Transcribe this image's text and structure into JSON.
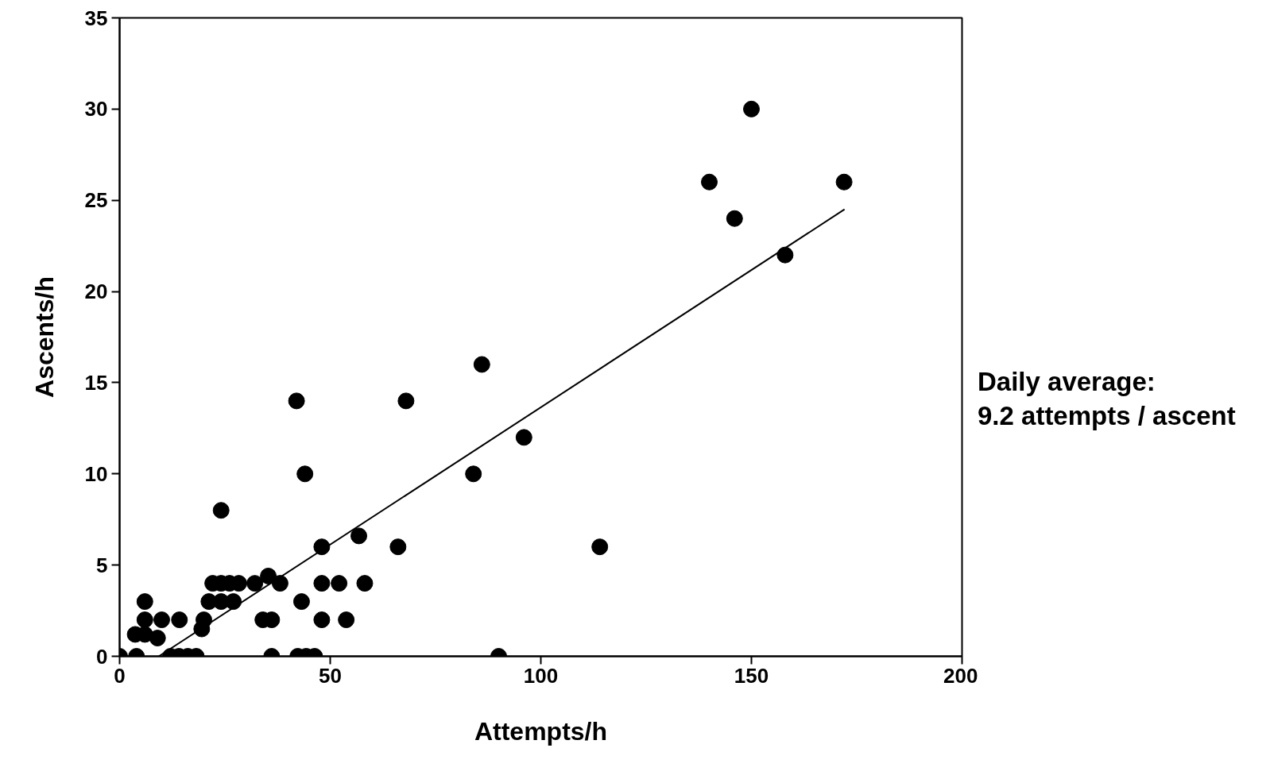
{
  "chart_data": {
    "type": "scatter",
    "xlabel": "Attempts/h",
    "ylabel": "Ascents/h",
    "xlim": [
      0,
      200
    ],
    "ylim": [
      0,
      35
    ],
    "xticks": [
      0,
      50,
      100,
      150,
      200
    ],
    "yticks": [
      0,
      5,
      10,
      15,
      20,
      25,
      30,
      35
    ],
    "grid": false,
    "annotations": [
      "Daily average:\n9.2 attempts / ascent"
    ],
    "series": [
      {
        "color": "#000000",
        "marker": "circle",
        "x": [
          0,
          4,
          3.7,
          6,
          9,
          6,
          10,
          14.2,
          20,
          19.5,
          6,
          21.2,
          24.1,
          27,
          22.1,
          24.1,
          26.1,
          28.3,
          32.1,
          38.1,
          35.3,
          34,
          36.1,
          43.2,
          48,
          56.8,
          66.1,
          48,
          52.1,
          58.2,
          48,
          53.8,
          24.1,
          44,
          12.1,
          14.1,
          16.2,
          18.2,
          36.1,
          42.3,
          44.3,
          46.3,
          42,
          68,
          86,
          84,
          96,
          114,
          90,
          140,
          146,
          150,
          158,
          172
        ],
        "values": [
          0,
          0,
          1.2,
          1.2,
          1.0,
          2,
          2,
          2,
          2,
          1.5,
          3,
          3,
          3,
          3,
          4,
          4,
          4,
          4,
          4,
          4,
          4.4,
          2,
          2,
          3,
          6,
          6.6,
          6,
          4,
          4,
          4,
          2,
          2,
          8,
          10,
          0,
          0,
          0,
          0,
          0,
          0,
          0,
          0,
          14,
          14,
          16,
          10,
          12,
          6,
          0,
          26,
          24,
          30,
          22,
          26
        ]
      },
      {
        "type": "line",
        "color": "#000000",
        "x": [
          9.3,
          172.1
        ],
        "values": [
          0,
          24.5
        ]
      }
    ]
  }
}
